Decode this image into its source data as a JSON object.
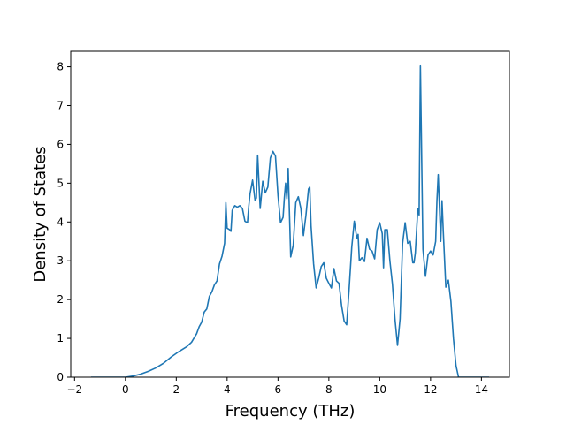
{
  "chart_data": {
    "type": "line",
    "title": "",
    "xlabel": "Frequency (THz)",
    "ylabel": "Density of States",
    "xlim": [
      -2.15,
      15.1
    ],
    "ylim": [
      0,
      8.4
    ],
    "xticks": [
      -2,
      0,
      2,
      4,
      6,
      8,
      10,
      12,
      14
    ],
    "xtick_labels": [
      "−2",
      "0",
      "2",
      "4",
      "6",
      "8",
      "10",
      "12",
      "14"
    ],
    "yticks": [
      0,
      1,
      2,
      3,
      4,
      5,
      6,
      7,
      8
    ],
    "ytick_labels": [
      "0",
      "1",
      "2",
      "3",
      "4",
      "5",
      "6",
      "7",
      "8"
    ],
    "grid": false,
    "colors": {
      "line": "#1f77b4",
      "axes": "#000000"
    },
    "series": [
      {
        "x": [
          -1.35,
          -0.5,
          0.0,
          0.3,
          0.6,
          0.9,
          1.2,
          1.5,
          1.8,
          2.1,
          2.4,
          2.6,
          2.8,
          2.9,
          3.0,
          3.1,
          3.2,
          3.3,
          3.4,
          3.5,
          3.6,
          3.7,
          3.8,
          3.9,
          3.95,
          4.0,
          4.1,
          4.15,
          4.2,
          4.3,
          4.4,
          4.5,
          4.6,
          4.7,
          4.8,
          4.85,
          4.9,
          5.0,
          5.1,
          5.15,
          5.2,
          5.3,
          5.4,
          5.5,
          5.6,
          5.7,
          5.8,
          5.9,
          6.0,
          6.1,
          6.2,
          6.25,
          6.3,
          6.35,
          6.4,
          6.5,
          6.6,
          6.7,
          6.8,
          6.9,
          7.0,
          7.1,
          7.2,
          7.25,
          7.3,
          7.4,
          7.5,
          7.6,
          7.7,
          7.8,
          7.9,
          8.0,
          8.1,
          8.2,
          8.3,
          8.4,
          8.5,
          8.6,
          8.7,
          8.8,
          8.9,
          9.0,
          9.1,
          9.15,
          9.2,
          9.3,
          9.4,
          9.5,
          9.6,
          9.7,
          9.8,
          9.9,
          10.0,
          10.1,
          10.15,
          10.2,
          10.3,
          10.4,
          10.5,
          10.6,
          10.7,
          10.8,
          10.9,
          11.0,
          11.1,
          11.2,
          11.3,
          11.35,
          11.4,
          11.5,
          11.55,
          11.6,
          11.7,
          11.8,
          11.9,
          12.0,
          12.1,
          12.2,
          12.25,
          12.3,
          12.4,
          12.45,
          12.5,
          12.6,
          12.7,
          12.8,
          12.9,
          13.0,
          13.1,
          13.3,
          13.6,
          14.0,
          14.3
        ],
        "values": [
          0.0,
          0.0,
          0.0,
          0.03,
          0.08,
          0.15,
          0.24,
          0.36,
          0.52,
          0.66,
          0.78,
          0.9,
          1.12,
          1.3,
          1.42,
          1.68,
          1.76,
          2.08,
          2.2,
          2.38,
          2.48,
          2.92,
          3.12,
          3.45,
          4.5,
          3.84,
          3.8,
          3.76,
          4.3,
          4.42,
          4.38,
          4.42,
          4.35,
          4.02,
          3.98,
          4.4,
          4.72,
          5.08,
          4.55,
          4.62,
          5.72,
          4.35,
          5.05,
          4.75,
          4.9,
          5.65,
          5.82,
          5.7,
          4.68,
          3.98,
          4.12,
          4.62,
          5.0,
          4.6,
          5.38,
          3.1,
          3.4,
          4.5,
          4.65,
          4.35,
          3.65,
          4.18,
          4.85,
          4.9,
          3.9,
          2.92,
          2.3,
          2.55,
          2.85,
          2.95,
          2.55,
          2.42,
          2.3,
          2.8,
          2.48,
          2.42,
          1.85,
          1.45,
          1.35,
          2.3,
          3.35,
          4.02,
          3.58,
          3.68,
          3.0,
          3.08,
          2.98,
          3.58,
          3.3,
          3.25,
          3.05,
          3.8,
          3.98,
          3.7,
          2.82,
          3.8,
          3.8,
          3.0,
          2.4,
          1.5,
          0.82,
          1.5,
          3.45,
          3.98,
          3.45,
          3.5,
          2.95,
          2.95,
          3.2,
          4.35,
          4.18,
          8.02,
          3.3,
          2.6,
          3.15,
          3.25,
          3.15,
          3.5,
          4.55,
          5.22,
          3.5,
          4.55,
          3.75,
          2.32,
          2.5,
          1.95,
          1.0,
          0.3,
          0.0,
          0.0,
          0.0,
          0.0,
          0.0
        ]
      }
    ]
  }
}
